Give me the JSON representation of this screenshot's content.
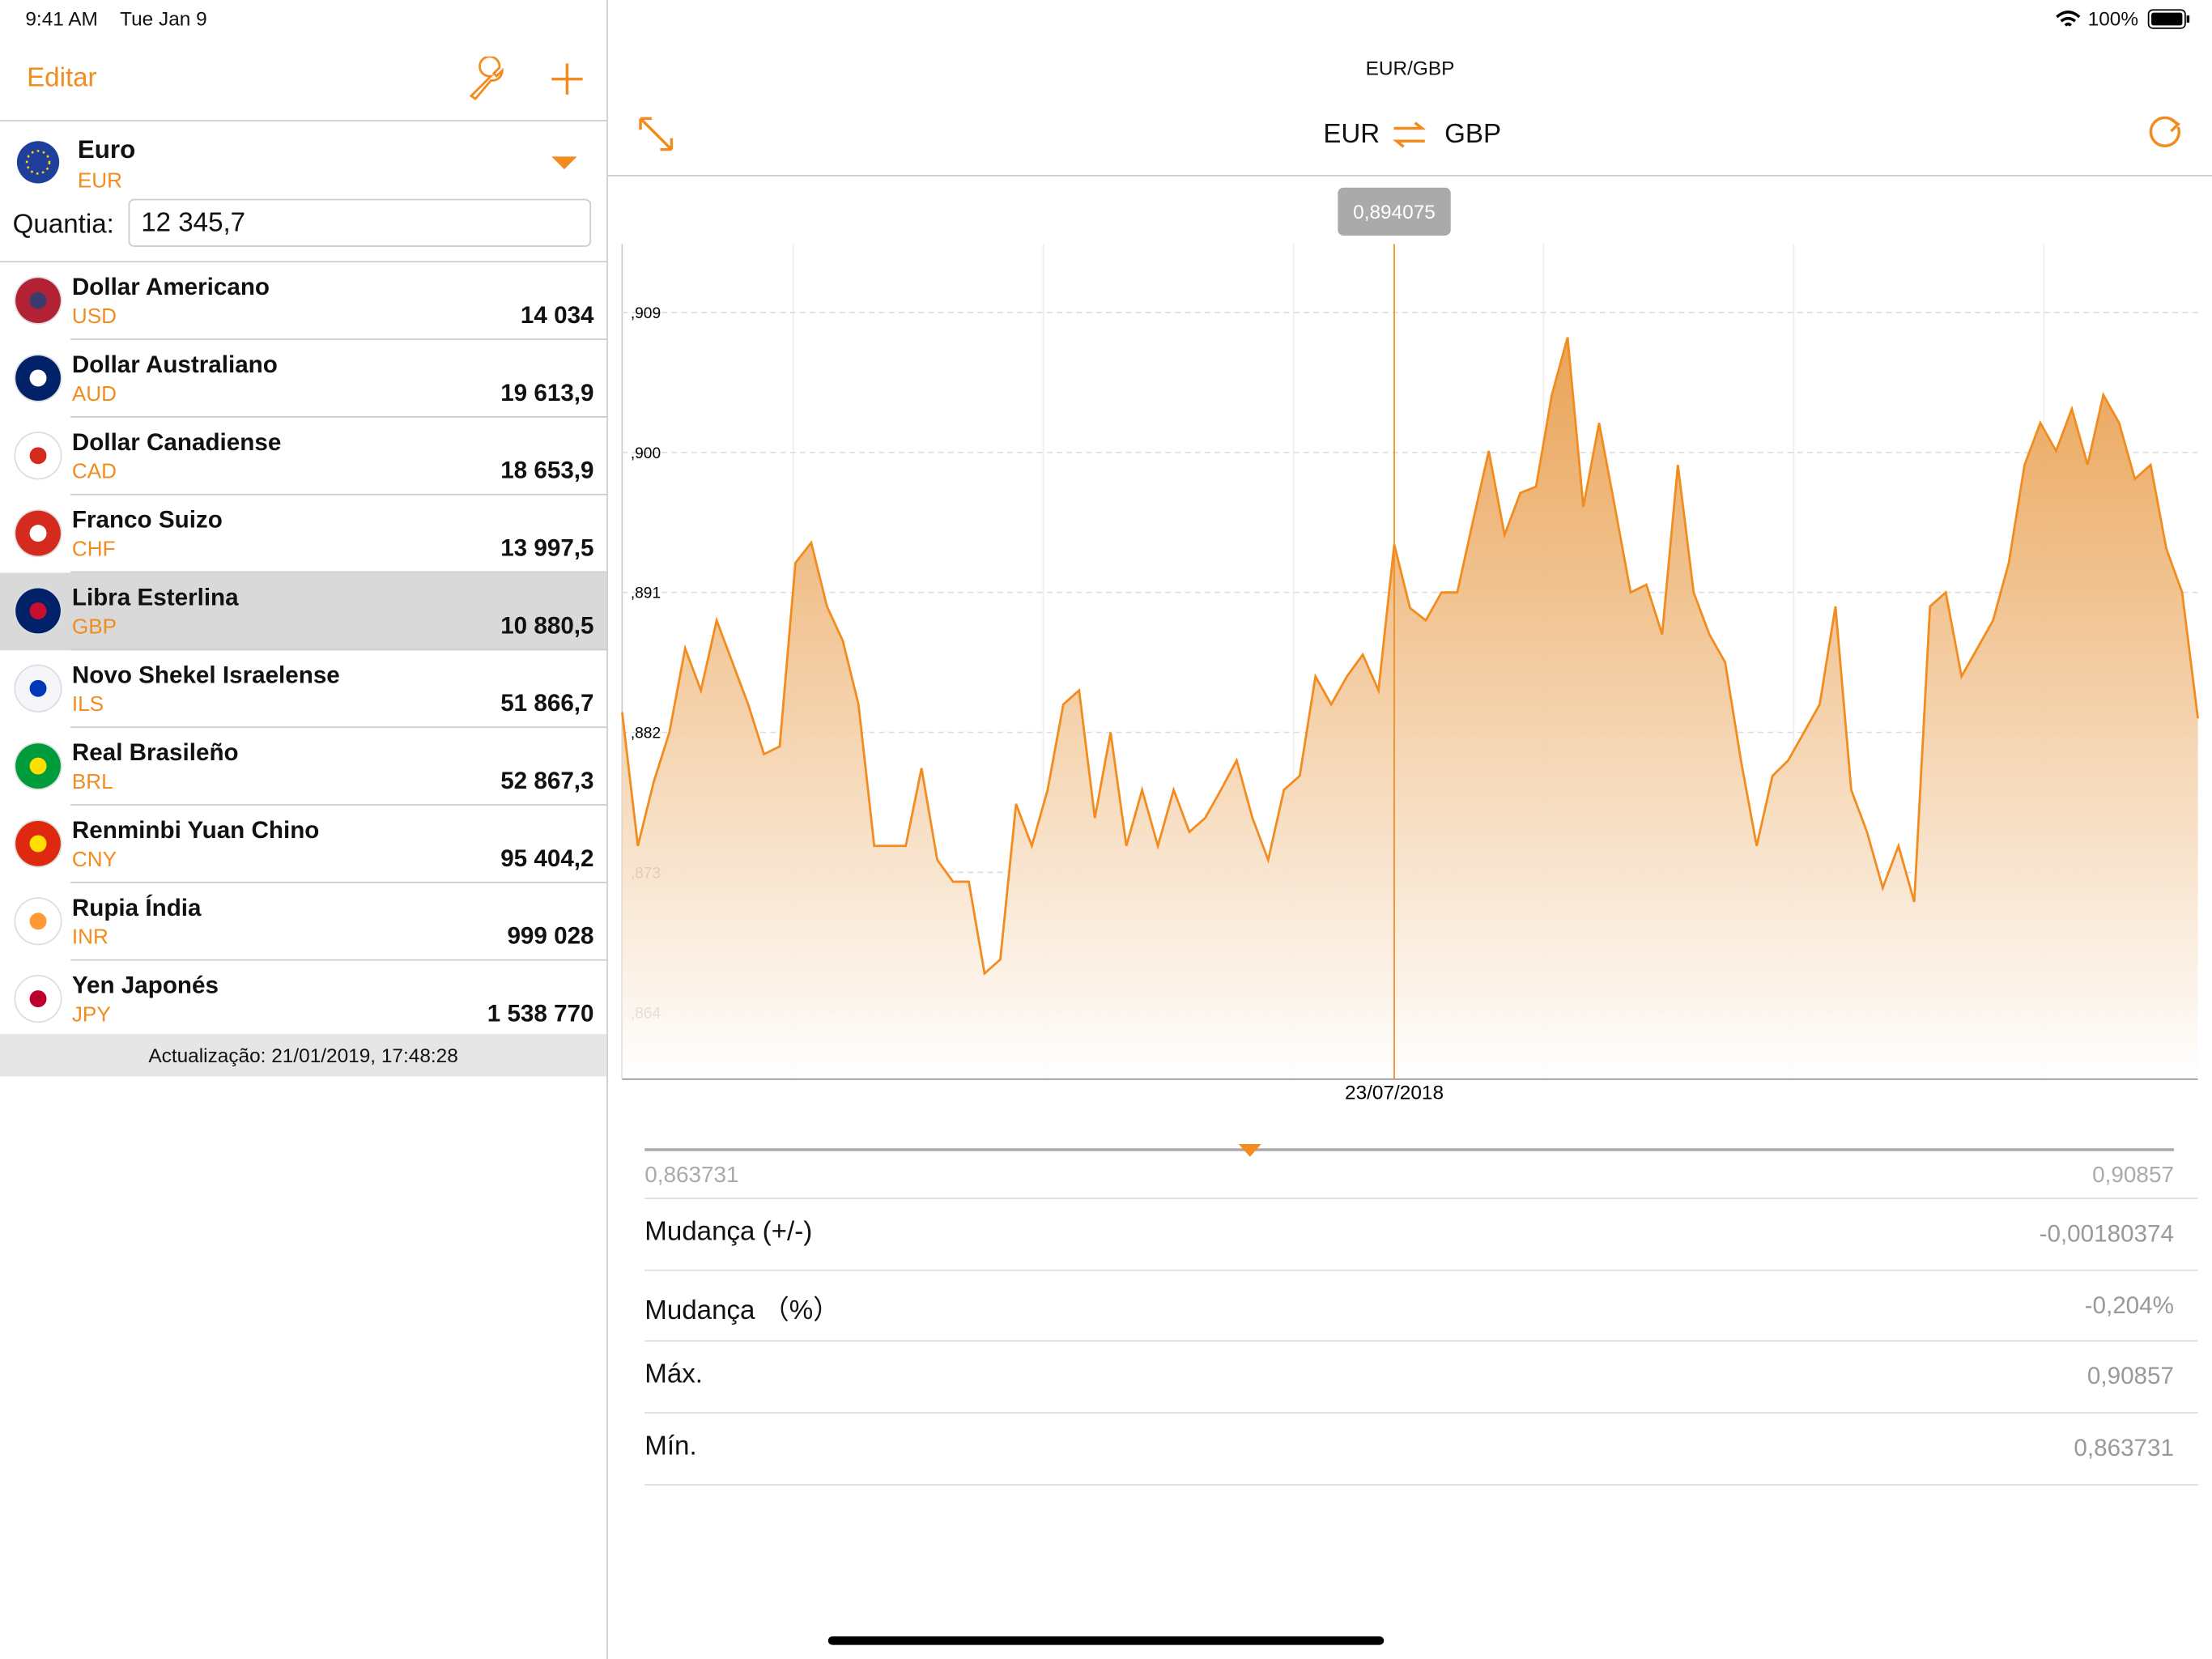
{
  "status_bar": {
    "time": "9:41 AM",
    "date": "Tue Jan 9",
    "battery": "100%"
  },
  "sidebar": {
    "edit": "Editar",
    "base": {
      "name": "Euro",
      "code": "EUR"
    },
    "amount_label": "Quantia:",
    "amount": "12 345,7",
    "currencies": [
      {
        "name": "Dollar Americano",
        "code": "USD",
        "value": "14 034"
      },
      {
        "name": "Dollar Australiano",
        "code": "AUD",
        "value": "19 613,9"
      },
      {
        "name": "Dollar Canadiense",
        "code": "CAD",
        "value": "18 653,9"
      },
      {
        "name": "Franco Suizo",
        "code": "CHF",
        "value": "13 997,5"
      },
      {
        "name": "Libra Esterlina",
        "code": "GBP",
        "value": "10 880,5",
        "selected": true
      },
      {
        "name": "Novo Shekel Israelense",
        "code": "ILS",
        "value": "51 866,7"
      },
      {
        "name": "Real Brasileño",
        "code": "BRL",
        "value": "52 867,3"
      },
      {
        "name": "Renminbi Yuan Chino",
        "code": "CNY",
        "value": "95 404,2"
      },
      {
        "name": "Rupia Índia",
        "code": "INR",
        "value": "999 028"
      },
      {
        "name": "Yen Japonés",
        "code": "JPY",
        "value": "1 538 770"
      }
    ],
    "updated": "Actualização: 21/01/2019, 17:48:28"
  },
  "detail": {
    "pair": "EUR/GBP",
    "from": "EUR",
    "to": "GBP",
    "range": {
      "min": "0,863731",
      "max": "0,90857"
    },
    "stats": [
      {
        "label": "Mudança (+/-)",
        "value": "-0,00180374"
      },
      {
        "label": "Mudança （%）",
        "value": "-0,204%"
      },
      {
        "label": "Máx.",
        "value": "0,90857"
      },
      {
        "label": "Mín.",
        "value": "0,863731"
      }
    ]
  },
  "chart_data": {
    "type": "area",
    "color": "#f28c1e",
    "grid": true,
    "ylim": [
      0.8597,
      0.9134
    ],
    "yticks": [
      {
        "value": 0.909,
        "label": ",909"
      },
      {
        "value": 0.9,
        "label": ",900"
      },
      {
        "value": 0.891,
        "label": ",891"
      },
      {
        "value": 0.882,
        "label": ",882"
      },
      {
        "value": 0.873,
        "label": ",873"
      },
      {
        "value": 0.864,
        "label": ",864"
      }
    ],
    "categories": [
      null,
      null,
      null,
      null,
      null,
      null,
      null,
      null,
      null,
      null,
      null,
      null,
      null,
      null,
      null,
      null,
      null,
      null,
      null,
      null,
      null,
      null,
      null,
      null,
      null,
      null,
      null,
      null,
      null,
      null,
      null,
      null,
      null,
      null,
      null,
      null,
      null,
      null,
      null,
      null,
      null,
      null,
      null,
      null,
      null,
      null,
      null,
      null,
      null,
      "23/07/2018",
      null,
      null,
      null,
      null,
      null,
      null,
      null,
      null,
      null,
      null,
      null,
      null,
      null,
      null,
      null,
      null,
      null,
      null,
      null,
      null,
      null,
      null,
      null,
      null,
      null,
      null,
      null,
      null,
      null,
      null,
      null,
      null,
      null,
      null,
      null,
      null,
      null,
      null,
      null,
      null,
      null,
      null,
      null,
      null,
      null,
      null,
      null,
      null,
      null,
      null,
      null
    ],
    "values": [
      0.8833,
      0.8747,
      0.8788,
      0.882,
      0.8874,
      0.8847,
      0.8892,
      0.8865,
      0.8838,
      0.8806,
      0.8811,
      0.8929,
      0.8942,
      0.8901,
      0.8879,
      0.8838,
      0.8747,
      0.8747,
      0.8747,
      0.8797,
      0.8738,
      0.8724,
      0.8724,
      0.8665,
      0.8674,
      0.8774,
      0.8747,
      0.8783,
      0.8838,
      0.8847,
      0.8765,
      0.882,
      0.8747,
      0.8783,
      0.8747,
      0.8783,
      0.8756,
      0.8765,
      0.8783,
      0.8802,
      0.8765,
      0.8738,
      0.8783,
      0.8792,
      0.8856,
      0.8838,
      0.8856,
      0.887,
      0.8847,
      0.894075,
      0.89,
      0.8892,
      0.891,
      0.891,
      0.8956,
      0.9001,
      0.8947,
      0.8974,
      0.8978,
      0.9037,
      0.9074,
      0.8965,
      0.9019,
      0.8965,
      0.891,
      0.8915,
      0.8883,
      0.8992,
      0.891,
      0.8883,
      0.8865,
      0.8802,
      0.8747,
      0.8792,
      0.8802,
      0.882,
      0.8838,
      0.8901,
      0.8783,
      0.8756,
      0.872,
      0.8747,
      0.8711,
      0.8901,
      0.891,
      0.8856,
      0.8874,
      0.8892,
      0.8929,
      0.8992,
      0.9019,
      0.9001,
      0.9028,
      0.8992,
      0.9037,
      0.9019,
      0.8983,
      0.8992,
      0.8938,
      0.891,
      0.8829
    ],
    "value_labels": [
      null,
      null,
      null,
      null,
      null,
      null,
      null,
      null,
      null,
      null,
      null,
      null,
      null,
      null,
      null,
      null,
      null,
      null,
      null,
      null,
      null,
      null,
      null,
      null,
      null,
      null,
      null,
      null,
      null,
      null,
      null,
      null,
      null,
      null,
      null,
      null,
      null,
      null,
      null,
      null,
      null,
      null,
      null,
      null,
      null,
      null,
      null,
      null,
      null,
      "0,894075",
      null,
      null,
      null,
      null,
      null,
      null,
      null,
      null,
      null,
      null,
      null,
      null,
      null,
      null,
      null,
      null,
      null,
      null,
      null,
      null,
      null,
      null,
      null,
      null,
      null,
      null,
      null,
      null,
      null,
      null,
      null,
      null,
      null,
      null,
      null,
      null,
      null,
      null,
      null,
      null,
      null,
      null,
      null,
      null,
      null,
      null,
      null,
      null,
      null,
      null,
      null
    ]
  }
}
